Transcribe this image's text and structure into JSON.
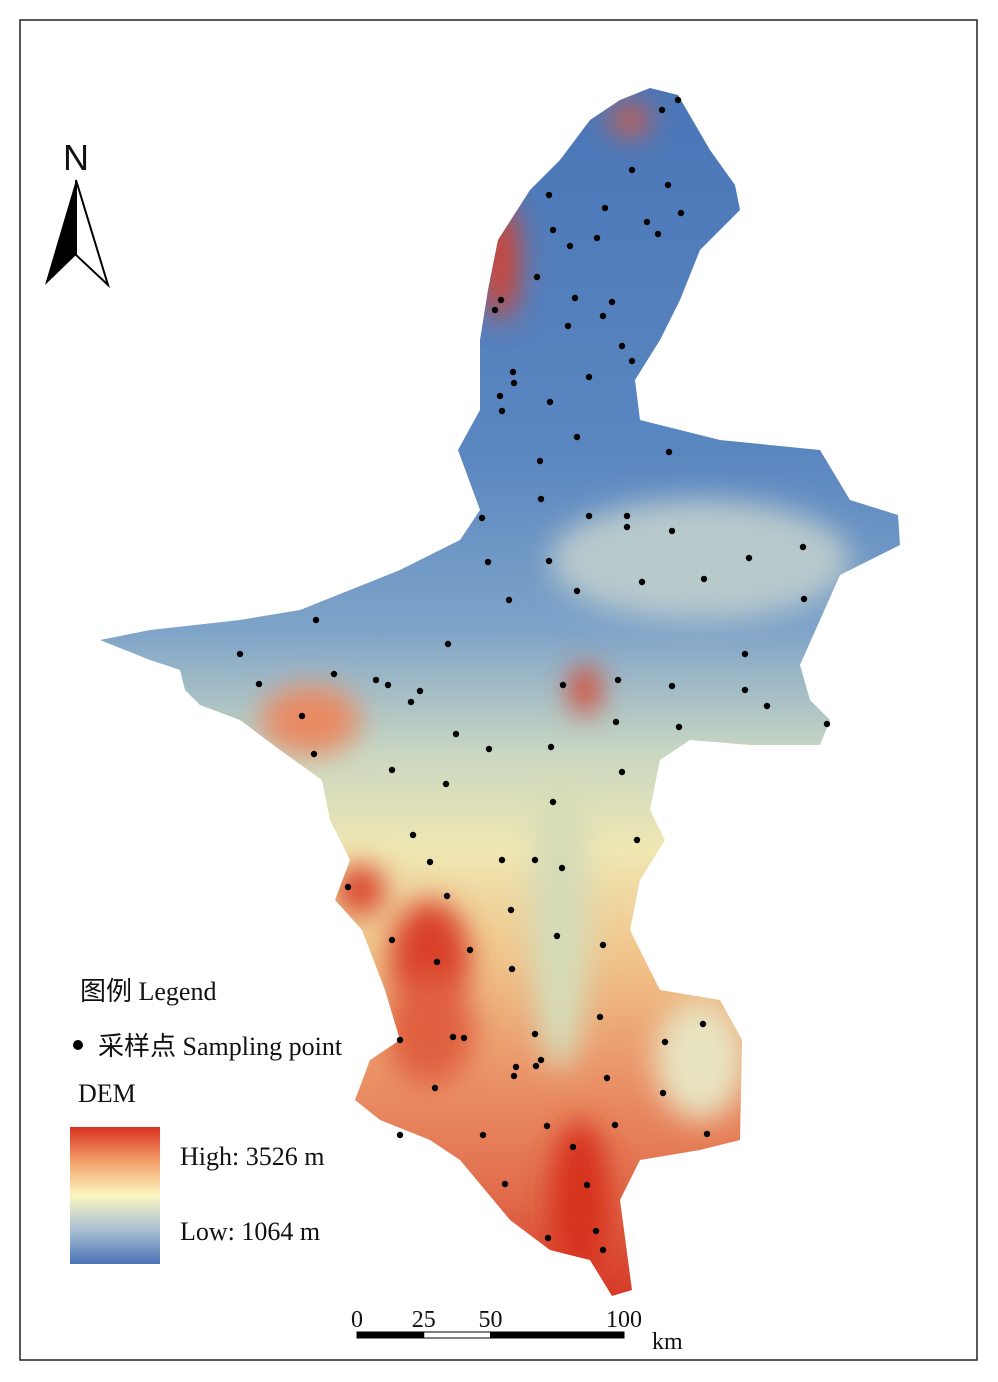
{
  "north": "N",
  "legend": {
    "title": "图例 Legend",
    "point_label": "采样点 Sampling point",
    "dem_title": "DEM",
    "high": "High: 3526 m",
    "low": "Low: 1064 m"
  },
  "scale_bar": {
    "ticks": [
      0,
      25,
      50,
      100
    ],
    "unit": "km"
  }
}
